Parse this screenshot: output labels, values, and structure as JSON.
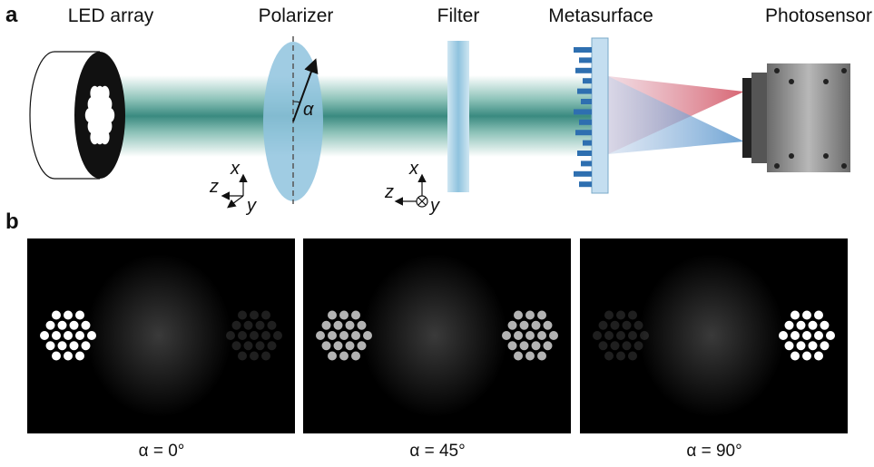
{
  "figure": {
    "panel_a": {
      "label": "a",
      "components": [
        "LED array",
        "Polarizer",
        "Filter",
        "Metasurface",
        "Photosensor"
      ],
      "angle_symbol": "α",
      "axes_left": {
        "x": "x",
        "y": "y",
        "z": "z"
      },
      "axes_right": {
        "x": "x",
        "y": "y",
        "z": "z"
      }
    },
    "panel_b": {
      "label": "b",
      "captions": [
        "α = 0°",
        "α = 45°",
        "α = 90°"
      ]
    }
  }
}
